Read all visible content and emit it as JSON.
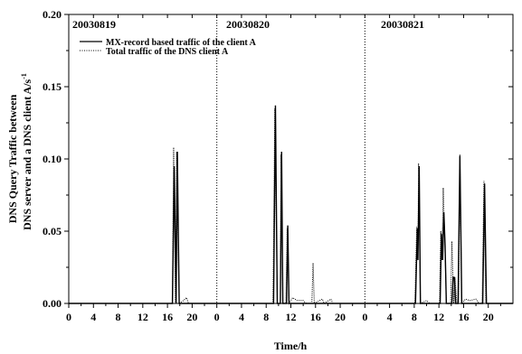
{
  "chart_data": {
    "type": "line",
    "xlabel": "Time/h",
    "ylabel_line1": "DNS Query Traffic between",
    "ylabel_line2": "DNS server and a DNS client A/s",
    "ylabel_exponent": "-1",
    "ylim": [
      0,
      0.2
    ],
    "y_ticks": [
      0.0,
      0.05,
      0.1,
      0.15,
      0.2
    ],
    "y_tick_labels": [
      "0.00",
      "0.05",
      "0.10",
      "0.15",
      "0.20"
    ],
    "x_range_hours": [
      0,
      72
    ],
    "x_tick_labels": [
      "0",
      "4",
      "8",
      "12",
      "16",
      "20",
      "0",
      "4",
      "8",
      "12",
      "16",
      "20",
      "0",
      "4",
      "8",
      "12",
      "16",
      "20"
    ],
    "day_separators_hours": [
      24,
      48
    ],
    "day_labels": [
      "20030819",
      "20030820",
      "20030821"
    ],
    "legend_position": "top-left",
    "series": [
      {
        "name": "MX-record based traffic of the client A",
        "style": "solid",
        "color": "#000000",
        "points": [
          [
            0,
            0
          ],
          [
            16.8,
            0
          ],
          [
            17.1,
            0.095
          ],
          [
            17.4,
            0
          ],
          [
            17.6,
            0.105
          ],
          [
            17.9,
            0
          ],
          [
            33.2,
            0
          ],
          [
            33.5,
            0.137
          ],
          [
            33.8,
            0
          ],
          [
            34.3,
            0
          ],
          [
            34.5,
            0.105
          ],
          [
            34.7,
            0
          ],
          [
            35.3,
            0
          ],
          [
            35.5,
            0.054
          ],
          [
            35.7,
            0
          ],
          [
            56.2,
            0
          ],
          [
            56.5,
            0.052
          ],
          [
            56.6,
            0.03
          ],
          [
            56.8,
            0.095
          ],
          [
            57.0,
            0
          ],
          [
            60.2,
            0
          ],
          [
            60.4,
            0.048
          ],
          [
            60.6,
            0.03
          ],
          [
            60.8,
            0.063
          ],
          [
            61.0,
            0.04
          ],
          [
            61.2,
            0
          ],
          [
            62.1,
            0
          ],
          [
            62.3,
            0.018
          ],
          [
            62.5,
            0.018
          ],
          [
            62.7,
            0
          ],
          [
            63.1,
            0
          ],
          [
            63.4,
            0.102
          ],
          [
            63.7,
            0
          ],
          [
            67.1,
            0
          ],
          [
            67.4,
            0.083
          ],
          [
            67.7,
            0
          ],
          [
            72,
            0
          ]
        ]
      },
      {
        "name": "Total traffic of the DNS client A",
        "style": "dotted",
        "color": "#000000",
        "points": [
          [
            0,
            0
          ],
          [
            16.8,
            0
          ],
          [
            17.0,
            0.108
          ],
          [
            17.3,
            0
          ],
          [
            17.5,
            0.105
          ],
          [
            17.9,
            0
          ],
          [
            18.6,
            0.002
          ],
          [
            19.1,
            0.004
          ],
          [
            19.4,
            0
          ],
          [
            33.1,
            0
          ],
          [
            33.4,
            0.135
          ],
          [
            33.8,
            0
          ],
          [
            34.3,
            0
          ],
          [
            34.4,
            0.103
          ],
          [
            34.7,
            0
          ],
          [
            35.2,
            0
          ],
          [
            35.4,
            0.052
          ],
          [
            35.7,
            0
          ],
          [
            36.3,
            0.004
          ],
          [
            37.0,
            0.002
          ],
          [
            38.0,
            0.002
          ],
          [
            38.5,
            0
          ],
          [
            39.4,
            0
          ],
          [
            39.6,
            0.028
          ],
          [
            39.8,
            0
          ],
          [
            41.1,
            0.003
          ],
          [
            41.4,
            0
          ],
          [
            42.5,
            0.003
          ],
          [
            42.8,
            0
          ],
          [
            56.1,
            0
          ],
          [
            56.4,
            0.053
          ],
          [
            56.6,
            0.03
          ],
          [
            56.7,
            0.097
          ],
          [
            57.0,
            0
          ],
          [
            58.0,
            0.002
          ],
          [
            58.5,
            0
          ],
          [
            60.1,
            0
          ],
          [
            60.3,
            0.05
          ],
          [
            60.5,
            0.03
          ],
          [
            60.7,
            0.08
          ],
          [
            61.0,
            0.035
          ],
          [
            61.2,
            0
          ],
          [
            61.9,
            0
          ],
          [
            62.1,
            0.043
          ],
          [
            62.4,
            0
          ],
          [
            62.6,
            0.018
          ],
          [
            62.9,
            0
          ],
          [
            63.2,
            0
          ],
          [
            63.4,
            0.103
          ],
          [
            63.7,
            0
          ],
          [
            64.3,
            0.003
          ],
          [
            65.0,
            0.002
          ],
          [
            66.0,
            0.003
          ],
          [
            66.5,
            0
          ],
          [
            67.0,
            0
          ],
          [
            67.3,
            0.085
          ],
          [
            67.6,
            0
          ],
          [
            72,
            0
          ]
        ]
      }
    ]
  }
}
